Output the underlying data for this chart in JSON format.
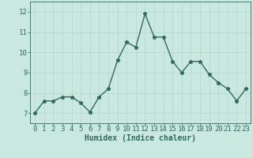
{
  "x": [
    0,
    1,
    2,
    3,
    4,
    5,
    6,
    7,
    8,
    9,
    10,
    11,
    12,
    13,
    14,
    15,
    16,
    17,
    18,
    19,
    20,
    21,
    22,
    23
  ],
  "y": [
    7.0,
    7.6,
    7.6,
    7.8,
    7.8,
    7.5,
    7.05,
    7.8,
    8.2,
    9.6,
    10.5,
    10.25,
    11.9,
    10.75,
    10.75,
    9.55,
    9.0,
    9.55,
    9.55,
    8.9,
    8.5,
    8.2,
    7.6,
    8.2
  ],
  "xlabel": "Humidex (Indice chaleur)",
  "ylim": [
    6.5,
    12.5
  ],
  "xlim": [
    -0.5,
    23.5
  ],
  "yticks": [
    7,
    8,
    9,
    10,
    11,
    12
  ],
  "xticks": [
    0,
    1,
    2,
    3,
    4,
    5,
    6,
    7,
    8,
    9,
    10,
    11,
    12,
    13,
    14,
    15,
    16,
    17,
    18,
    19,
    20,
    21,
    22,
    23
  ],
  "line_color": "#2e6b5e",
  "marker": "*",
  "marker_size": 3.5,
  "bg_color": "#c8e8e0",
  "grid_color": "#b8d4cc",
  "xlabel_fontsize": 7,
  "tick_fontsize": 6.5,
  "line_width": 1.0,
  "tick_label_color": "#2e6b5e"
}
